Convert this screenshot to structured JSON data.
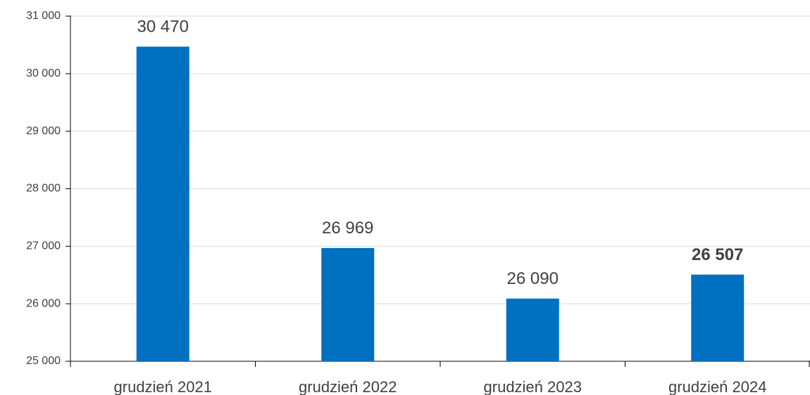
{
  "chart_data": {
    "type": "bar",
    "categories": [
      "grudzień 2021",
      "grudzień 2022",
      "grudzień 2023",
      "grudzień 2024"
    ],
    "values": [
      30470,
      26969,
      26090,
      26507
    ],
    "value_labels": [
      "30 470",
      "26 969",
      "26 090",
      "26 507"
    ],
    "bold_labels": [
      false,
      false,
      false,
      true
    ],
    "color": "#0070c0",
    "ylim": [
      25000,
      31000
    ],
    "yticks": [
      {
        "value": 25000,
        "label": "25 000"
      },
      {
        "value": 26000,
        "label": "26 000"
      },
      {
        "value": 27000,
        "label": "27 000"
      },
      {
        "value": 28000,
        "label": "28 000"
      },
      {
        "value": 29000,
        "label": "29 000"
      },
      {
        "value": 30000,
        "label": "30 000"
      },
      {
        "value": 31000,
        "label": "31 000"
      }
    ],
    "grid": true
  }
}
